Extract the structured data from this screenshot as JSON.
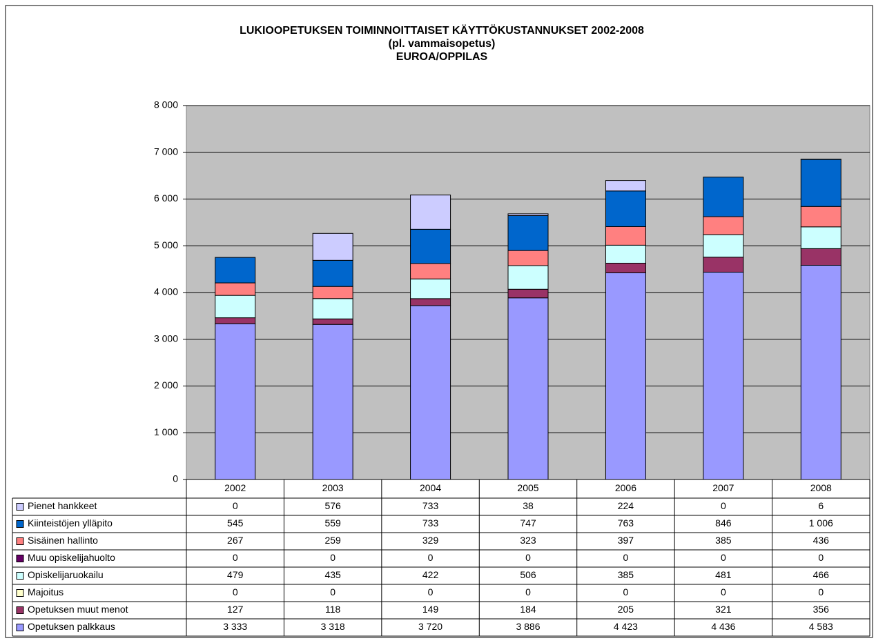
{
  "chart_data": {
    "type": "bar",
    "stacked": true,
    "title": [
      "LUKIOOPETUKSEN TOIMINNOITTAISET KÄYTTÖKUSTANNUKSET 2002-2008",
      "(pl. vammaisopetus)",
      "EUROA/OPPILAS"
    ],
    "categories": [
      "2002",
      "2003",
      "2004",
      "2005",
      "2006",
      "2007",
      "2008"
    ],
    "ylim": [
      0,
      8000
    ],
    "yticks": [
      0,
      {
        "value": 1000,
        "label": "1 000"
      },
      {
        "value": 2000,
        "label": "2 000"
      },
      {
        "value": 3000,
        "label": "3 000"
      },
      {
        "value": 4000,
        "label": "4 000"
      },
      {
        "value": 5000,
        "label": "5 000"
      },
      {
        "value": 6000,
        "label": "6 000"
      },
      {
        "value": 7000,
        "label": "7 000"
      },
      {
        "value": 8000,
        "label": "8 000"
      }
    ],
    "grid": true,
    "plot_background": "#c0c0c0",
    "series": [
      {
        "name": "Opetuksen palkkaus",
        "color": "#9999ff",
        "values": [
          3333,
          3318,
          3720,
          3886,
          4423,
          4436,
          4583
        ],
        "value_labels": [
          "3 333",
          "3 318",
          "3 720",
          "3 886",
          "4 423",
          "4 436",
          "4 583"
        ]
      },
      {
        "name": "Opetuksen muut menot",
        "color": "#993366",
        "values": [
          127,
          118,
          149,
          184,
          205,
          321,
          356
        ],
        "value_labels": [
          "127",
          "118",
          "149",
          "184",
          "205",
          "321",
          "356"
        ]
      },
      {
        "name": "Majoitus",
        "color": "#ffffcc",
        "values": [
          0,
          0,
          0,
          0,
          0,
          0,
          0
        ],
        "value_labels": [
          "0",
          "0",
          "0",
          "0",
          "0",
          "0",
          "0"
        ]
      },
      {
        "name": "Opiskelijaruokailu",
        "color": "#ccffff",
        "values": [
          479,
          435,
          422,
          506,
          385,
          481,
          466
        ],
        "value_labels": [
          "479",
          "435",
          "422",
          "506",
          "385",
          "481",
          "466"
        ]
      },
      {
        "name": "Muu opiskelijahuolto",
        "color": "#660066",
        "values": [
          0,
          0,
          0,
          0,
          0,
          0,
          0
        ],
        "value_labels": [
          "0",
          "0",
          "0",
          "0",
          "0",
          "0",
          "0"
        ]
      },
      {
        "name": "Sisäinen hallinto",
        "color": "#ff8080",
        "values": [
          267,
          259,
          329,
          323,
          397,
          385,
          436
        ],
        "value_labels": [
          "267",
          "259",
          "329",
          "323",
          "397",
          "385",
          "436"
        ]
      },
      {
        "name": "Kiinteistöjen ylläpito",
        "color": "#0066cc",
        "values": [
          545,
          559,
          733,
          747,
          763,
          846,
          1006
        ],
        "value_labels": [
          "545",
          "559",
          "733",
          "747",
          "763",
          "846",
          "1 006"
        ]
      },
      {
        "name": "Pienet hankkeet",
        "color": "#ccccff",
        "values": [
          0,
          576,
          733,
          38,
          224,
          0,
          6
        ],
        "value_labels": [
          "0",
          "576",
          "733",
          "38",
          "224",
          "0",
          "6"
        ]
      }
    ]
  }
}
